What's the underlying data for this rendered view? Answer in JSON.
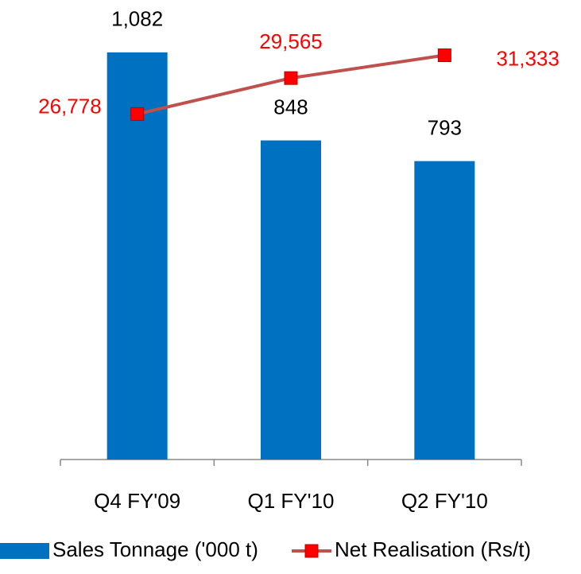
{
  "chart_data": {
    "type": "bar_line",
    "categories": [
      "Q4 FY'09",
      "Q1 FY'10",
      "Q2 FY'10"
    ],
    "series": [
      {
        "name": "Sales Tonnage ('000 t)",
        "type": "bar",
        "color": "#0070c0",
        "values": [
          1082,
          848,
          793
        ],
        "value_labels": [
          "1,082",
          "848",
          "793"
        ]
      },
      {
        "name": "Net Realisation (Rs/t)",
        "type": "line",
        "axis": "y2",
        "color": "#c0504d",
        "marker_color": "#ff0000",
        "values": [
          26778,
          29565,
          31333
        ],
        "value_labels": [
          "26,778",
          "29,565",
          "31,333"
        ],
        "label_color": "#ff0000"
      }
    ],
    "ylim": [
      0,
      1200
    ],
    "y2lim": [
      0,
      35000
    ]
  }
}
